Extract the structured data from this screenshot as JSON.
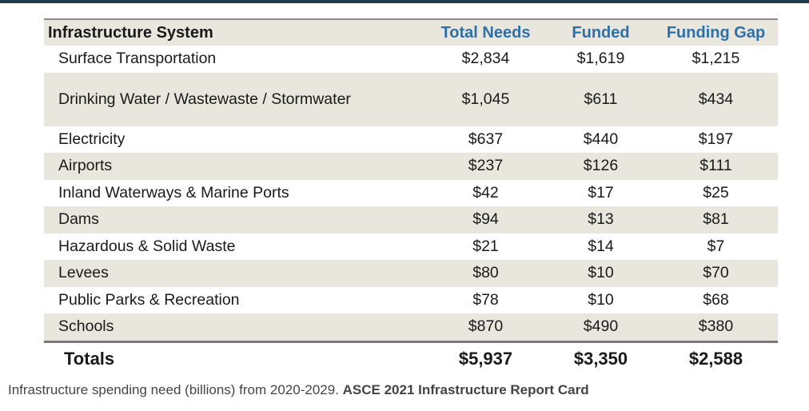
{
  "chart_data": {
    "type": "table",
    "columns": [
      "Infrastructure System",
      "Total Needs",
      "Funded",
      "Funding Gap"
    ],
    "rows": [
      {
        "name": "Surface Transportation",
        "total": "$2,834",
        "funded": "$1,619",
        "gap": "$1,215"
      },
      {
        "name": "Drinking Water / Wastewaste / Stormwater",
        "total": "$1,045",
        "funded": "$611",
        "gap": "$434"
      },
      {
        "name": "Electricity",
        "total": "$637",
        "funded": "$440",
        "gap": "$197"
      },
      {
        "name": "Airports",
        "total": "$237",
        "funded": "$126",
        "gap": "$111"
      },
      {
        "name": "Inland Waterways & Marine Ports",
        "total": "$42",
        "funded": "$17",
        "gap": "$25"
      },
      {
        "name": "Dams",
        "total": "$94",
        "funded": "$13",
        "gap": "$81"
      },
      {
        "name": "Hazardous & Solid Waste",
        "total": "$21",
        "funded": "$14",
        "gap": "$7"
      },
      {
        "name": "Levees",
        "total": "$80",
        "funded": "$10",
        "gap": "$70"
      },
      {
        "name": "Public Parks & Recreation",
        "total": "$78",
        "funded": "$10",
        "gap": "$68"
      },
      {
        "name": "Schools",
        "total": "$870",
        "funded": "$490",
        "gap": "$380"
      }
    ],
    "totals": {
      "name": "Totals",
      "total": "$5,937",
      "funded": "$3,350",
      "gap": "$2,588"
    }
  },
  "caption": {
    "text": "Infrastructure spending need (billions) from 2020-2029.",
    "source": "ASCE 2021 Infrastructure Report Card"
  },
  "colors": {
    "header_accent": "#2f6fa8",
    "row_shade": "#e9e6dd",
    "top_rule": "#1f3a4d"
  }
}
